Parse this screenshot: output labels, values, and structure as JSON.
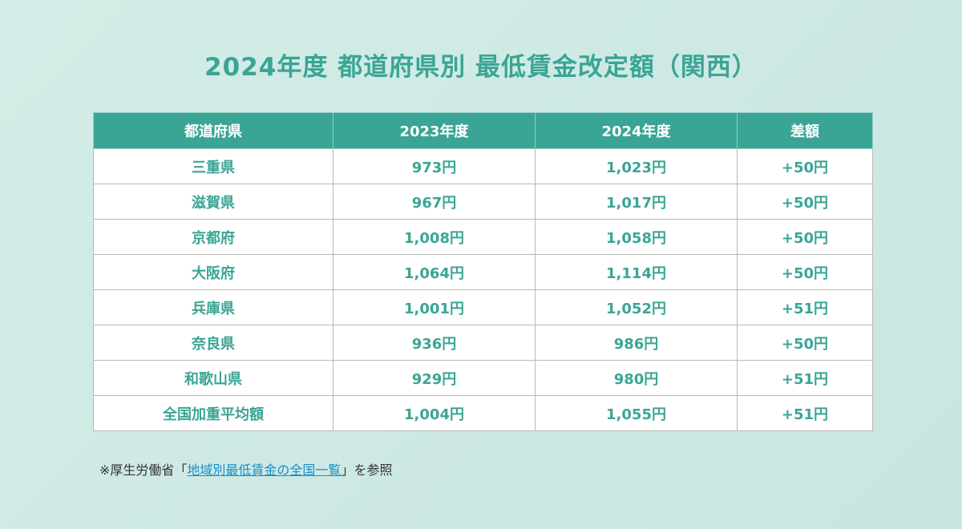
{
  "title": "2024年度 都道府県別 最低賃金改定額（関西）",
  "table": {
    "headers": [
      "都道府県",
      "2023年度",
      "2024年度",
      "差額"
    ],
    "rows": [
      [
        "三重県",
        "973円",
        "1,023円",
        "+50円"
      ],
      [
        "滋賀県",
        "967円",
        "1,017円",
        "+50円"
      ],
      [
        "京都府",
        "1,008円",
        "1,058円",
        "+50円"
      ],
      [
        "大阪府",
        "1,064円",
        "1,114円",
        "+50円"
      ],
      [
        "兵庫県",
        "1,001円",
        "1,052円",
        "+51円"
      ],
      [
        "奈良県",
        "936円",
        "986円",
        "+50円"
      ],
      [
        "和歌山県",
        "929円",
        "980円",
        "+51円"
      ],
      [
        "全国加重平均額",
        "1,004円",
        "1,055円",
        "+51円"
      ]
    ]
  },
  "note": {
    "prefix": "※厚生労働省「",
    "link_text": "地域別最低賃金の全国一覧",
    "suffix": "」を参照"
  },
  "colors": {
    "accent": "#3aa595",
    "background": "#cfe9e4",
    "link": "#1a8fc7"
  }
}
